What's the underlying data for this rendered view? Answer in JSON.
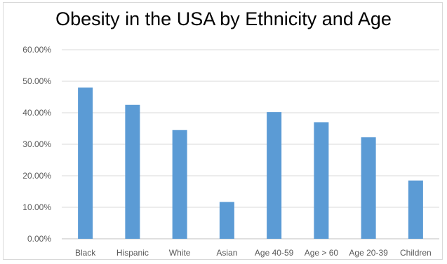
{
  "chart_data": {
    "type": "bar",
    "title": "Obesity in the USA by Ethnicity and Age",
    "xlabel": "",
    "ylabel": "",
    "categories": [
      "Black",
      "Hispanic",
      "White",
      "Asian",
      "Age 40-59",
      "Age > 60",
      "Age 20-39",
      "Children"
    ],
    "values": [
      48.0,
      42.5,
      34.5,
      11.7,
      40.2,
      37.0,
      32.2,
      18.5
    ],
    "ylim": [
      0,
      60
    ],
    "yticks": [
      "0.00%",
      "10.00%",
      "20.00%",
      "30.00%",
      "40.00%",
      "50.00%",
      "60.00%"
    ],
    "grid": true,
    "legend": "none",
    "bar_color": "#5b9bd5"
  }
}
